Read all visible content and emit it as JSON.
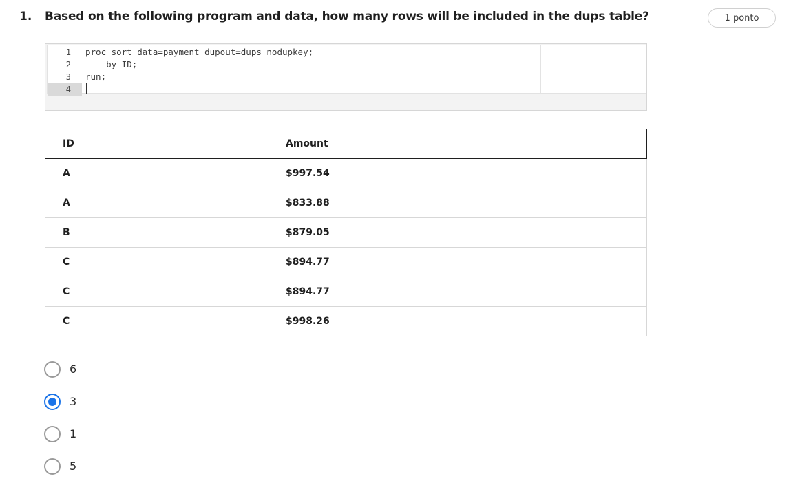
{
  "question": {
    "number": "1.",
    "text": "Based on the following program and data, how many rows will be included in the dups table?",
    "points": "1 ponto"
  },
  "code": {
    "line_numbers": [
      "1",
      "2",
      "3",
      "4"
    ],
    "lines": [
      "proc sort data=payment dupout=dups nodupkey;",
      "    by ID;",
      "run;",
      ""
    ],
    "active_line": "4"
  },
  "table": {
    "headers": [
      "ID",
      "Amount"
    ],
    "rows": [
      [
        "A",
        "$997.54"
      ],
      [
        "A",
        "$833.88"
      ],
      [
        "B",
        "$879.05"
      ],
      [
        "C",
        "$894.77"
      ],
      [
        "C",
        "$894.77"
      ],
      [
        "C",
        "$998.26"
      ]
    ]
  },
  "options": [
    {
      "label": "6",
      "selected": false
    },
    {
      "label": "3",
      "selected": true
    },
    {
      "label": "1",
      "selected": false
    },
    {
      "label": "5",
      "selected": false
    }
  ],
  "colors": {
    "accent": "#1a73e8",
    "radio_border": "#9a9a9a",
    "table_header_border": "#1f1f1f",
    "table_row_border": "#d7d7d7"
  }
}
